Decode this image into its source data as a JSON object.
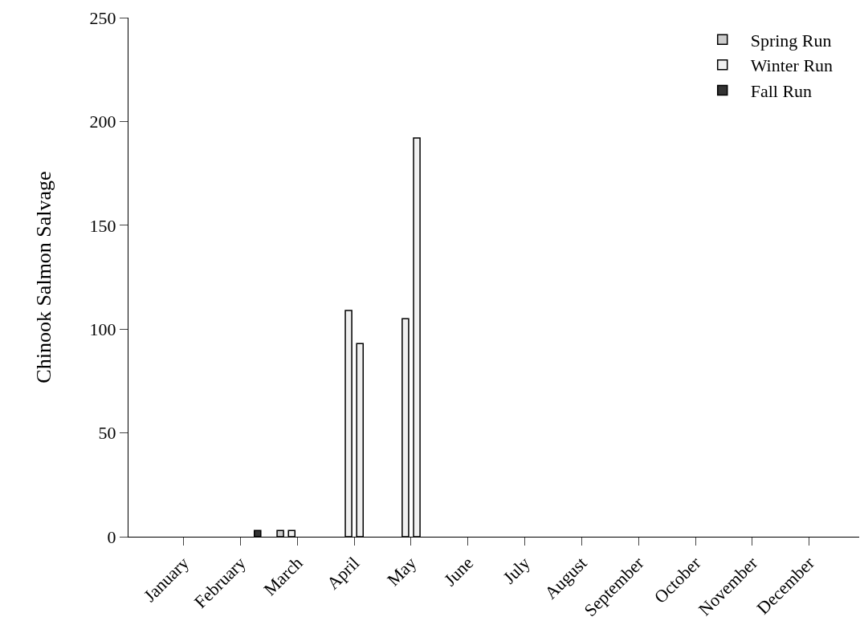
{
  "chart_data": {
    "type": "bar",
    "ylabel": "Chinook Salmon Salvage",
    "categories": [
      "January",
      "February",
      "March",
      "April",
      "May",
      "June",
      "July",
      "August",
      "September",
      "October",
      "November",
      "December"
    ],
    "ylim": [
      0,
      250
    ],
    "yticks": [
      0,
      50,
      100,
      150,
      200,
      250
    ],
    "series": [
      {
        "name": "Spring Run",
        "color": "#cccccc",
        "values": [
          null,
          null,
          3,
          null,
          null,
          null,
          null,
          null,
          null,
          null,
          null,
          null
        ]
      },
      {
        "name": "Winter Run",
        "color": "#f0f0f0",
        "values": [
          null,
          null,
          3,
          109,
          105,
          null,
          null,
          null,
          null,
          null,
          null,
          null
        ]
      },
      {
        "color": "#f0f0f0",
        "values": [
          null,
          null,
          null,
          93,
          192,
          null,
          null,
          null,
          null,
          null,
          null,
          null
        ]
      },
      {
        "name": "Fall Run",
        "color": "#333333",
        "values": [
          null,
          3,
          null,
          null,
          null,
          null,
          null,
          null,
          null,
          null,
          null,
          null
        ]
      }
    ],
    "legend": "top right"
  }
}
